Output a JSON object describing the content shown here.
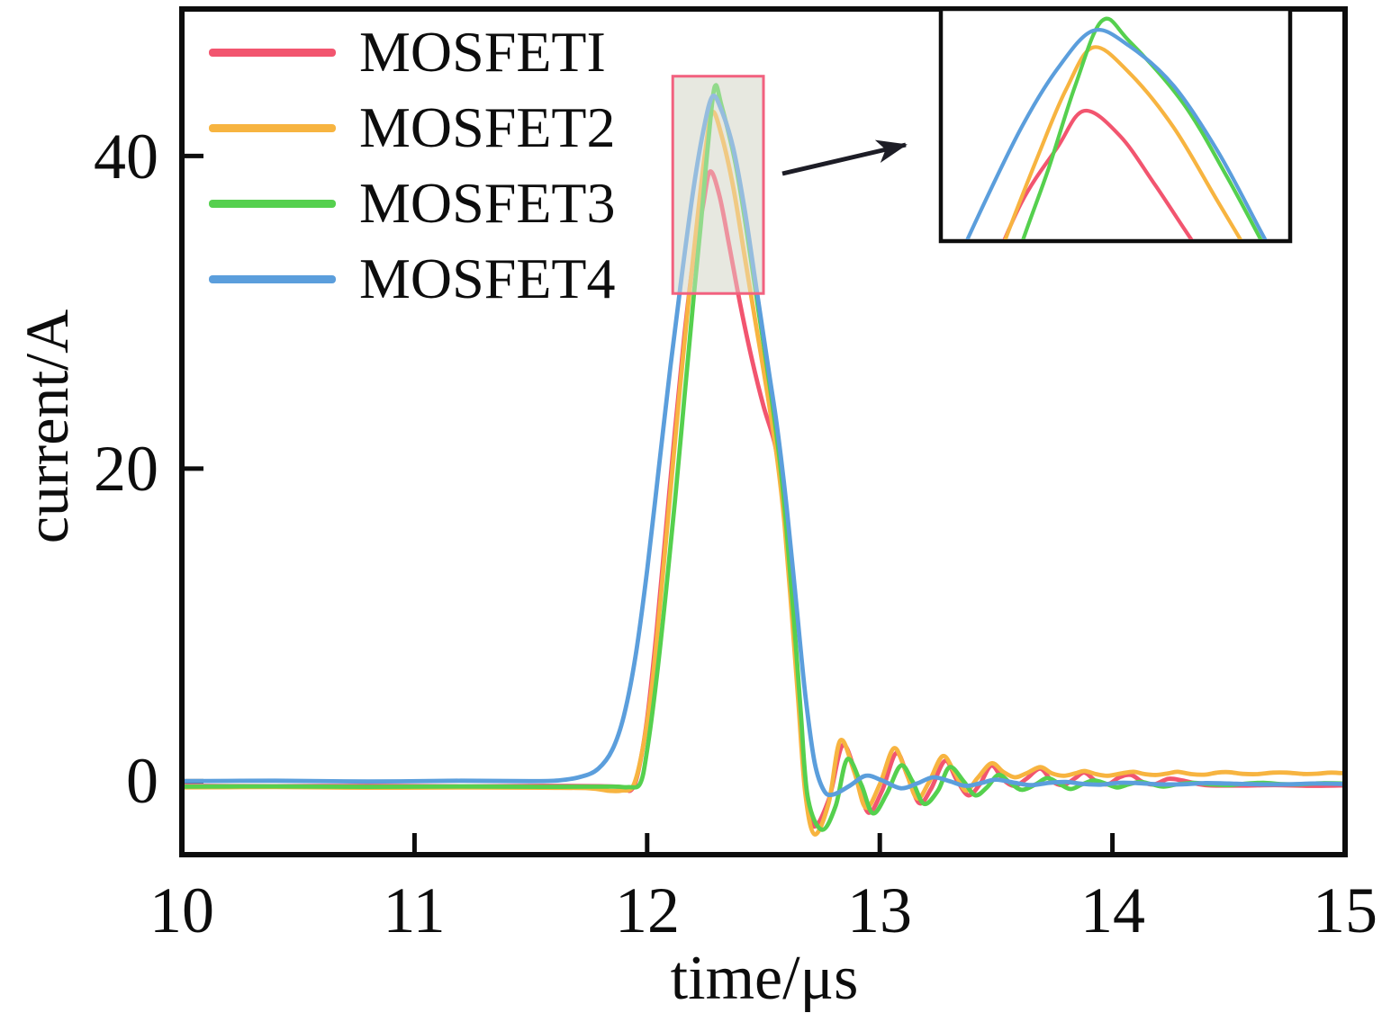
{
  "chart_data": {
    "type": "line",
    "title": "",
    "xlabel": "time/μs",
    "ylabel": "current/A",
    "xlim": [
      10,
      15
    ],
    "ylim": [
      -4.7,
      49.4
    ],
    "xticks": [
      10,
      11,
      12,
      13,
      14,
      15
    ],
    "yticks": [
      40,
      20,
      0
    ],
    "xtick_labels": [
      "10",
      "11",
      "12",
      "13",
      "14",
      "15"
    ],
    "ytick_labels": [
      "40",
      "20",
      "0"
    ],
    "grid": false,
    "legend_position": "top-left",
    "frame_color": "#0d0d0d",
    "background": "#ffffff",
    "zoom_region": {
      "t_range": [
        12.11,
        12.5
      ],
      "current_range": [
        31.2,
        45.1
      ],
      "outline_color": "#F2617F",
      "fill_color": "#E7E8E0"
    },
    "series": [
      {
        "name": "MOSFETI",
        "color": "#F2556F",
        "peak_current": 39.0,
        "peak_time": 12.27,
        "points": [
          [
            10,
            -0.3
          ],
          [
            10.4,
            -0.32
          ],
          [
            10.8,
            -0.3
          ],
          [
            11.2,
            -0.33
          ],
          [
            11.55,
            -0.3
          ],
          [
            11.8,
            -0.32
          ],
          [
            11.89,
            -0.38
          ],
          [
            11.93,
            -0.58
          ],
          [
            11.96,
            0.5
          ],
          [
            12.0,
            4
          ],
          [
            12.04,
            9.5
          ],
          [
            12.08,
            16
          ],
          [
            12.12,
            22.5
          ],
          [
            12.16,
            28.5
          ],
          [
            12.2,
            33.5
          ],
          [
            12.24,
            36.8
          ],
          [
            12.27,
            39
          ],
          [
            12.31,
            37.5
          ],
          [
            12.35,
            34.5
          ],
          [
            12.4,
            30.5
          ],
          [
            12.45,
            27
          ],
          [
            12.5,
            24
          ],
          [
            12.55,
            21.5
          ],
          [
            12.58,
            18.5
          ],
          [
            12.61,
            13.5
          ],
          [
            12.64,
            7.5
          ],
          [
            12.67,
            1.5
          ],
          [
            12.71,
            -2.8
          ],
          [
            12.78,
            -1.2
          ],
          [
            12.84,
            2.3
          ],
          [
            12.9,
            0.3
          ],
          [
            12.95,
            -2
          ],
          [
            13.01,
            -0.6
          ],
          [
            13.07,
            1.8
          ],
          [
            13.12,
            0.3
          ],
          [
            13.17,
            -1.4
          ],
          [
            13.22,
            -0.5
          ],
          [
            13.28,
            1.3
          ],
          [
            13.33,
            0.1
          ],
          [
            13.38,
            -0.9
          ],
          [
            13.43,
            -0.2
          ],
          [
            13.48,
            1
          ],
          [
            13.53,
            0.1
          ],
          [
            13.58,
            -0.3
          ],
          [
            13.63,
            0.15
          ],
          [
            13.69,
            0.8
          ],
          [
            13.74,
            0
          ],
          [
            13.79,
            -0.25
          ],
          [
            13.84,
            0.2
          ],
          [
            13.88,
            0.55
          ],
          [
            13.93,
            0
          ],
          [
            13.98,
            -0.2
          ],
          [
            14.03,
            0.25
          ],
          [
            14.08,
            0.4
          ],
          [
            14.13,
            -0.05
          ],
          [
            14.18,
            -0.2
          ],
          [
            14.24,
            0.15
          ],
          [
            14.3,
            0.05
          ],
          [
            14.4,
            -0.25
          ],
          [
            14.55,
            -0.28
          ],
          [
            14.7,
            -0.25
          ],
          [
            14.85,
            -0.3
          ],
          [
            15,
            -0.27
          ]
        ]
      },
      {
        "name": "MOSFET2",
        "color": "#F7B440",
        "peak_current": 42.8,
        "peak_time": 12.28,
        "points": [
          [
            10,
            -0.4
          ],
          [
            10.4,
            -0.38
          ],
          [
            10.8,
            -0.42
          ],
          [
            11.2,
            -0.4
          ],
          [
            11.55,
            -0.42
          ],
          [
            11.75,
            -0.45
          ],
          [
            11.84,
            -0.62
          ],
          [
            11.89,
            -0.6
          ],
          [
            11.94,
            -0.3
          ],
          [
            11.98,
            2
          ],
          [
            12.02,
            6
          ],
          [
            12.06,
            12
          ],
          [
            12.1,
            18.5
          ],
          [
            12.14,
            25
          ],
          [
            12.18,
            31
          ],
          [
            12.22,
            36.5
          ],
          [
            12.25,
            40.3
          ],
          [
            12.28,
            42.8
          ],
          [
            12.32,
            41.3
          ],
          [
            12.37,
            38
          ],
          [
            12.42,
            33.5
          ],
          [
            12.47,
            29
          ],
          [
            12.52,
            24.5
          ],
          [
            12.56,
            20.5
          ],
          [
            12.59,
            16.5
          ],
          [
            12.62,
            11
          ],
          [
            12.65,
            5
          ],
          [
            12.68,
            -0.8
          ],
          [
            12.72,
            -3.4
          ],
          [
            12.78,
            -1.4
          ],
          [
            12.83,
            2.6
          ],
          [
            12.89,
            0.6
          ],
          [
            12.94,
            -1.7
          ],
          [
            13.0,
            -0.2
          ],
          [
            13.06,
            2.1
          ],
          [
            13.11,
            0.7
          ],
          [
            13.16,
            -1.1
          ],
          [
            13.21,
            -0.1
          ],
          [
            13.27,
            1.6
          ],
          [
            13.32,
            0.6
          ],
          [
            13.37,
            -0.6
          ],
          [
            13.42,
            0.2
          ],
          [
            13.48,
            1.15
          ],
          [
            13.53,
            0.6
          ],
          [
            13.58,
            0.25
          ],
          [
            13.63,
            0.5
          ],
          [
            13.69,
            0.9
          ],
          [
            13.74,
            0.5
          ],
          [
            13.79,
            0.35
          ],
          [
            13.84,
            0.5
          ],
          [
            13.88,
            0.65
          ],
          [
            13.93,
            0.45
          ],
          [
            13.98,
            0.35
          ],
          [
            14.04,
            0.5
          ],
          [
            14.09,
            0.6
          ],
          [
            14.14,
            0.45
          ],
          [
            14.19,
            0.4
          ],
          [
            14.24,
            0.5
          ],
          [
            14.28,
            0.6
          ],
          [
            14.34,
            0.45
          ],
          [
            14.4,
            0.42
          ],
          [
            14.45,
            0.55
          ],
          [
            14.5,
            0.58
          ],
          [
            14.56,
            0.47
          ],
          [
            14.62,
            0.45
          ],
          [
            14.69,
            0.55
          ],
          [
            14.75,
            0.55
          ],
          [
            14.82,
            0.46
          ],
          [
            14.88,
            0.48
          ],
          [
            14.94,
            0.55
          ],
          [
            15,
            0.5
          ]
        ]
      },
      {
        "name": "MOSFET3",
        "color": "#55D04E",
        "peak_current": 44.4,
        "peak_time": 12.29,
        "points": [
          [
            10,
            -0.35
          ],
          [
            10.4,
            -0.33
          ],
          [
            10.8,
            -0.36
          ],
          [
            11.2,
            -0.34
          ],
          [
            11.55,
            -0.36
          ],
          [
            11.85,
            -0.35
          ],
          [
            11.92,
            -0.38
          ],
          [
            11.97,
            -0.15
          ],
          [
            12.0,
            2
          ],
          [
            12.04,
            6.5
          ],
          [
            12.08,
            12
          ],
          [
            12.12,
            18
          ],
          [
            12.16,
            24.5
          ],
          [
            12.2,
            31
          ],
          [
            12.23,
            35.5
          ],
          [
            12.26,
            40.5
          ],
          [
            12.29,
            44.4
          ],
          [
            12.32,
            43.2
          ],
          [
            12.38,
            39.5
          ],
          [
            12.43,
            35
          ],
          [
            12.48,
            30
          ],
          [
            12.53,
            25
          ],
          [
            12.57,
            20.5
          ],
          [
            12.6,
            16
          ],
          [
            12.63,
            10.5
          ],
          [
            12.66,
            4.5
          ],
          [
            12.69,
            -1
          ],
          [
            12.75,
            -3.1
          ],
          [
            12.81,
            -1.6
          ],
          [
            12.86,
            1.4
          ],
          [
            12.92,
            -0.2
          ],
          [
            12.97,
            -2.05
          ],
          [
            13.03,
            -0.8
          ],
          [
            13.09,
            1
          ],
          [
            13.14,
            0
          ],
          [
            13.19,
            -1.45
          ],
          [
            13.25,
            -0.6
          ],
          [
            13.3,
            0.9
          ],
          [
            13.36,
            0
          ],
          [
            13.41,
            -0.9
          ],
          [
            13.46,
            -0.4
          ],
          [
            13.51,
            0.4
          ],
          [
            13.56,
            -0.1
          ],
          [
            13.61,
            -0.55
          ],
          [
            13.67,
            -0.2
          ],
          [
            13.72,
            0.2
          ],
          [
            13.77,
            -0.15
          ],
          [
            13.82,
            -0.5
          ],
          [
            13.87,
            -0.2
          ],
          [
            13.92,
            0.05
          ],
          [
            13.97,
            -0.15
          ],
          [
            14.02,
            -0.4
          ],
          [
            14.07,
            -0.2
          ],
          [
            14.12,
            -0.05
          ],
          [
            14.17,
            -0.2
          ],
          [
            14.22,
            -0.35
          ],
          [
            14.28,
            -0.2
          ],
          [
            14.35,
            -0.1
          ],
          [
            14.42,
            -0.2
          ],
          [
            14.5,
            -0.25
          ],
          [
            14.58,
            -0.15
          ],
          [
            14.65,
            -0.1
          ],
          [
            14.72,
            -0.18
          ],
          [
            14.8,
            -0.2
          ],
          [
            14.9,
            -0.13
          ],
          [
            15,
            -0.15
          ]
        ]
      },
      {
        "name": "MOSFET4",
        "color": "#5B9EDC",
        "peak_current": 43.8,
        "peak_time": 12.28,
        "points": [
          [
            10,
            0
          ],
          [
            10.4,
            0.03
          ],
          [
            10.8,
            -0.02
          ],
          [
            11.2,
            0.03
          ],
          [
            11.5,
            0
          ],
          [
            11.62,
            0.05
          ],
          [
            11.72,
            0.3
          ],
          [
            11.79,
            0.8
          ],
          [
            11.85,
            2
          ],
          [
            11.9,
            4.2
          ],
          [
            11.95,
            8
          ],
          [
            12.0,
            13.5
          ],
          [
            12.05,
            20
          ],
          [
            12.1,
            26.5
          ],
          [
            12.15,
            32.5
          ],
          [
            12.2,
            38
          ],
          [
            12.24,
            41.5
          ],
          [
            12.28,
            43.8
          ],
          [
            12.32,
            42.9
          ],
          [
            12.37,
            40.5
          ],
          [
            12.42,
            36.5
          ],
          [
            12.47,
            31.5
          ],
          [
            12.52,
            26.5
          ],
          [
            12.56,
            22.5
          ],
          [
            12.6,
            17.5
          ],
          [
            12.64,
            11.5
          ],
          [
            12.68,
            5.5
          ],
          [
            12.72,
            1.2
          ],
          [
            12.76,
            -0.6
          ],
          [
            12.8,
            -0.85
          ],
          [
            12.87,
            -0.3
          ],
          [
            12.94,
            0.35
          ],
          [
            13.01,
            0.05
          ],
          [
            13.09,
            -0.45
          ],
          [
            13.16,
            -0.15
          ],
          [
            13.23,
            0.25
          ],
          [
            13.3,
            0
          ],
          [
            13.37,
            -0.3
          ],
          [
            13.44,
            -0.1
          ],
          [
            13.5,
            0.1
          ],
          [
            13.58,
            -0.1
          ],
          [
            13.65,
            -0.25
          ],
          [
            13.73,
            -0.1
          ],
          [
            13.8,
            -0.05
          ],
          [
            13.88,
            -0.18
          ],
          [
            13.95,
            -0.22
          ],
          [
            14.03,
            -0.1
          ],
          [
            14.1,
            -0.12
          ],
          [
            14.2,
            -0.2
          ],
          [
            14.3,
            -0.2
          ],
          [
            14.4,
            -0.12
          ],
          [
            14.5,
            -0.15
          ],
          [
            14.62,
            -0.2
          ],
          [
            14.75,
            -0.2
          ],
          [
            14.87,
            -0.15
          ],
          [
            15,
            -0.18
          ]
        ]
      }
    ]
  }
}
